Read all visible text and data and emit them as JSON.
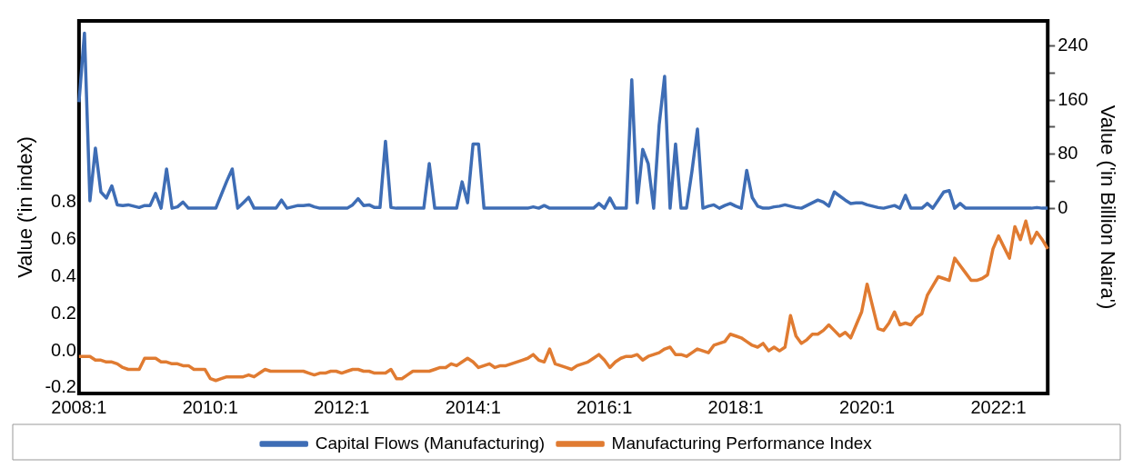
{
  "chart_data": {
    "type": "line",
    "ylabel": "Value ('in index)",
    "y2label": "Value ('in Billion Naira')",
    "categories": [
      "2008:1",
      null,
      null,
      null,
      null,
      null,
      null,
      null,
      null,
      null,
      null,
      null,
      null,
      null,
      null,
      null,
      null,
      null,
      null,
      null,
      null,
      null,
      null,
      null,
      "2010:1",
      null,
      null,
      null,
      null,
      null,
      null,
      null,
      null,
      null,
      null,
      null,
      null,
      null,
      null,
      null,
      null,
      null,
      null,
      null,
      null,
      null,
      null,
      null,
      "2012:1",
      null,
      null,
      null,
      null,
      null,
      null,
      null,
      null,
      null,
      null,
      null,
      null,
      null,
      null,
      null,
      null,
      null,
      null,
      null,
      null,
      null,
      null,
      null,
      "2014:1",
      null,
      null,
      null,
      null,
      null,
      null,
      null,
      null,
      null,
      null,
      null,
      null,
      null,
      null,
      null,
      null,
      null,
      null,
      null,
      null,
      null,
      null,
      null,
      "2016:1",
      null,
      null,
      null,
      null,
      null,
      null,
      null,
      null,
      null,
      null,
      null,
      null,
      null,
      null,
      null,
      null,
      null,
      null,
      null,
      null,
      null,
      null,
      null,
      "2018:1",
      null,
      null,
      null,
      null,
      null,
      null,
      null,
      null,
      null,
      null,
      null,
      null,
      null,
      null,
      null,
      null,
      null,
      null,
      null,
      null,
      null,
      null,
      null,
      "2020:1",
      null,
      null,
      null,
      null,
      null,
      null,
      null,
      null,
      null,
      null,
      null,
      null,
      null,
      null,
      null,
      null,
      null,
      null,
      null,
      null,
      null,
      null,
      null,
      "2022:1",
      null,
      null,
      null,
      null,
      null,
      null,
      null,
      null,
      null
    ],
    "ylim": [
      -0.23,
      1.78
    ],
    "yticks": [
      -0.2,
      {
        "value": 0,
        "label": "0.0"
      },
      0.2,
      0.4,
      0.6,
      0.8
    ],
    "y2lim": [
      -274,
      277
    ],
    "y2ticks": [
      0,
      {
        "value": 40,
        "label": null
      },
      80,
      {
        "value": 120,
        "label": null
      },
      160,
      {
        "value": 200,
        "label": null
      },
      240
    ],
    "grid": false,
    "legend": "bottom",
    "marker": "none",
    "line_style": "solid",
    "series": [
      {
        "name": "Capital Flows (Manufacturing)",
        "color": "#3e6db5",
        "axis": "y2",
        "values": [
          157,
          259,
          11,
          89,
          24,
          15,
          33,
          5,
          4,
          5,
          3,
          1,
          4,
          4,
          22,
          0,
          58,
          0,
          2,
          9,
          0,
          0,
          0,
          0,
          0,
          0,
          20,
          40,
          58,
          0,
          8,
          16,
          0,
          0,
          0,
          0,
          0,
          12,
          0,
          2,
          4,
          4,
          5,
          2,
          0,
          0,
          0,
          0,
          0,
          0,
          5,
          14,
          4,
          5,
          1,
          1,
          99,
          1,
          0,
          0,
          0,
          0,
          0,
          0,
          66,
          0,
          0,
          0,
          0,
          0,
          39,
          8,
          95,
          95,
          0,
          0,
          0,
          0,
          0,
          0,
          0,
          0,
          0,
          2,
          0,
          4,
          0,
          0,
          0,
          0,
          0,
          0,
          0,
          0,
          0,
          7,
          0,
          15,
          0,
          0,
          0,
          190,
          8,
          87,
          66,
          0,
          123,
          195,
          0,
          95,
          0,
          0,
          55,
          117,
          0,
          3,
          5,
          0,
          4,
          7,
          3,
          0,
          56,
          16,
          3,
          0,
          0,
          2,
          3,
          5,
          3,
          1,
          0,
          4,
          8,
          12,
          9,
          3,
          24,
          18,
          12,
          7,
          8,
          8,
          5,
          3,
          1,
          0,
          2,
          4,
          0,
          19,
          0,
          0,
          0,
          7,
          0,
          12,
          24,
          26,
          0,
          7,
          0,
          0,
          0,
          0,
          0,
          0,
          0,
          0,
          0,
          0,
          0,
          0,
          0,
          1,
          0,
          0
        ]
      },
      {
        "name": "Manufacturing Performance Index",
        "color": "#e07b31",
        "values": [
          -0.03,
          -0.03,
          -0.03,
          -0.05,
          -0.05,
          -0.06,
          -0.06,
          -0.07,
          -0.09,
          -0.1,
          -0.1,
          -0.1,
          -0.04,
          -0.04,
          -0.04,
          -0.06,
          -0.06,
          -0.07,
          -0.07,
          -0.08,
          -0.08,
          -0.1,
          -0.1,
          -0.1,
          -0.15,
          -0.16,
          -0.15,
          -0.14,
          -0.14,
          -0.14,
          -0.14,
          -0.13,
          -0.14,
          -0.12,
          -0.1,
          -0.11,
          -0.11,
          -0.11,
          -0.11,
          -0.11,
          -0.11,
          -0.11,
          -0.12,
          -0.13,
          -0.12,
          -0.12,
          -0.11,
          -0.11,
          -0.12,
          -0.11,
          -0.1,
          -0.1,
          -0.11,
          -0.11,
          -0.12,
          -0.12,
          -0.12,
          -0.1,
          -0.15,
          -0.15,
          -0.13,
          -0.11,
          -0.11,
          -0.11,
          -0.11,
          -0.1,
          -0.09,
          -0.09,
          -0.07,
          -0.08,
          -0.06,
          -0.04,
          -0.06,
          -0.09,
          -0.08,
          -0.07,
          -0.09,
          -0.08,
          -0.08,
          -0.07,
          -0.06,
          -0.05,
          -0.04,
          -0.02,
          -0.05,
          -0.06,
          0.01,
          -0.07,
          -0.08,
          -0.09,
          -0.1,
          -0.08,
          -0.07,
          -0.06,
          -0.04,
          -0.02,
          -0.05,
          -0.09,
          -0.06,
          -0.04,
          -0.03,
          -0.03,
          -0.02,
          -0.05,
          -0.03,
          -0.02,
          -0.01,
          0.01,
          0.02,
          -0.02,
          -0.02,
          -0.03,
          -0.01,
          0.01,
          0,
          -0.01,
          0.03,
          0.04,
          0.05,
          0.09,
          0.08,
          0.07,
          0.05,
          0.03,
          0.02,
          0.04,
          0,
          0.02,
          0,
          0.02,
          0.19,
          0.08,
          0.04,
          0.06,
          0.09,
          0.09,
          0.11,
          0.14,
          0.11,
          0.08,
          0.1,
          0.07,
          0.14,
          0.21,
          0.36,
          0.24,
          0.12,
          0.11,
          0.15,
          0.21,
          0.14,
          0.15,
          0.14,
          0.18,
          0.2,
          0.3,
          0.35,
          0.4,
          0.39,
          0.38,
          0.5,
          0.46,
          0.42,
          0.38,
          0.38,
          0.39,
          0.41,
          0.55,
          0.62,
          0.56,
          0.5,
          0.67,
          0.6,
          0.7,
          0.58,
          0.64,
          0.6,
          0.55
        ]
      }
    ]
  }
}
